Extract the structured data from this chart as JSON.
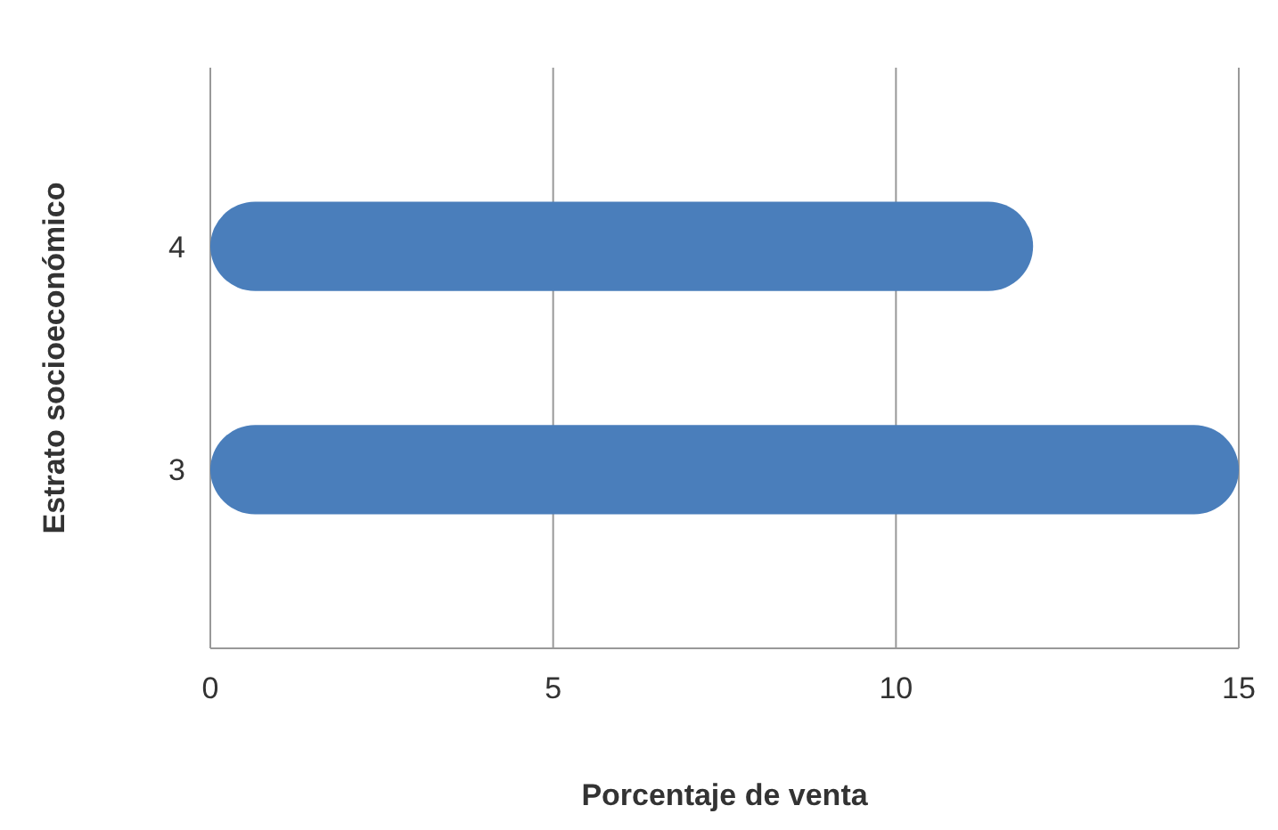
{
  "chart_data": {
    "type": "bar",
    "orientation": "horizontal",
    "categories": [
      "4",
      "3"
    ],
    "values": [
      12,
      15
    ],
    "color": "#4a7ebb",
    "xlim": [
      0,
      15
    ],
    "xticks": [
      0,
      5,
      10,
      15
    ],
    "grid": "x",
    "xlabel": "Porcentaje de venta",
    "ylabel": "Estrato socioeconómico"
  }
}
